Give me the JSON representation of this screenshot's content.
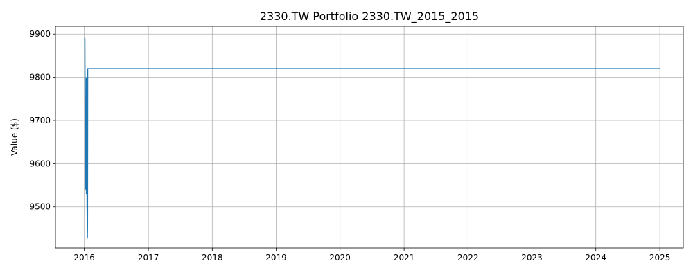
{
  "chart_data": {
    "type": "line",
    "title": "2330.TW Portfolio 2330.TW_2015_2015",
    "xlabel": "",
    "ylabel": "Value ($)",
    "x_ticks": [
      "2016",
      "2017",
      "2018",
      "2019",
      "2020",
      "2021",
      "2022",
      "2023",
      "2024",
      "2025"
    ],
    "y_ticks": [
      "9500",
      "9600",
      "9700",
      "9800",
      "9900"
    ],
    "xlim": [
      "2015-07-20",
      "2025-05-15"
    ],
    "ylim": [
      9405,
      9918
    ],
    "grid": true,
    "legend": "none",
    "line_color": "#1f77b4",
    "series": [
      {
        "x": [
          "2016-01-04",
          "2016-01-05",
          "2016-01-06",
          "2016-01-07",
          "2016-01-08",
          "2016-01-11",
          "2016-01-12",
          "2016-01-13",
          "2016-01-14",
          "2016-01-15",
          "2016-01-18",
          "2016-01-19",
          "2016-01-20",
          "2016-01-21",
          "2016-01-22",
          "2016-01-25",
          "2025-01-01"
        ],
        "values": [
          9891,
          9780,
          9660,
          9540,
          9705,
          9590,
          9800,
          9530,
          9560,
          9620,
          9427,
          9460,
          9820,
          9820,
          9820,
          9820,
          9820
        ]
      }
    ]
  }
}
